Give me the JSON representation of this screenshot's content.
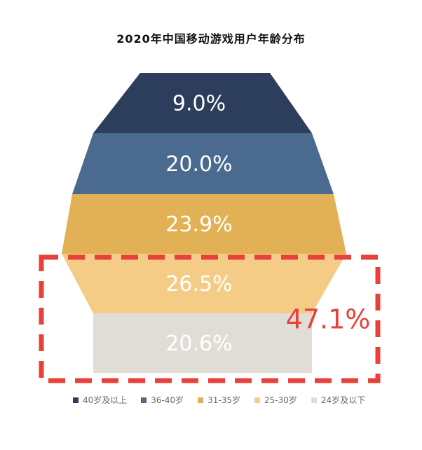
{
  "chart_data": {
    "type": "funnel",
    "title": "2020年中国移动游戏用户年龄分布",
    "categories": [
      "40岁及以上",
      "36-40岁",
      "31-35岁",
      "25-30岁",
      "24岁及以下"
    ],
    "values": [
      9.0,
      20.0,
      23.9,
      26.5,
      20.6
    ],
    "labels": [
      "9.0%",
      "20.0%",
      "23.9%",
      "26.5%",
      "20.6%"
    ],
    "colors": [
      "#2d3e5c",
      "#4a6a90",
      "#e2b155",
      "#f5cc86",
      "#dfddd5"
    ],
    "legend_position": "bottom",
    "highlight": {
      "categories": [
        "25-30岁",
        "24岁及以下"
      ],
      "value_label": "47.1%",
      "color": "#e8403a"
    }
  }
}
